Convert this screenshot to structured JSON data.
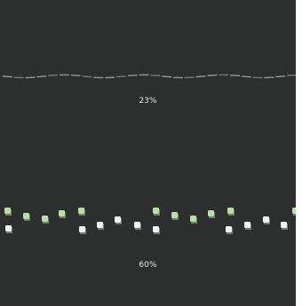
{
  "indicators": [
    {
      "progress_text": "23%",
      "progress": 0.23,
      "style": "wave-line",
      "colors": {
        "stroke": "#8f9a8f",
        "stroke_alt": "#6f7b70"
      }
    },
    {
      "progress_text": "60%",
      "progress": 0.6,
      "style": "dots",
      "colors": {
        "green": "#b5e0a2",
        "white": "#f2f2f2",
        "shadow": "#7a7a7a"
      }
    }
  ],
  "colors": {
    "panel_bg": "#2d2f2f",
    "text": "#e6e6e6"
  }
}
